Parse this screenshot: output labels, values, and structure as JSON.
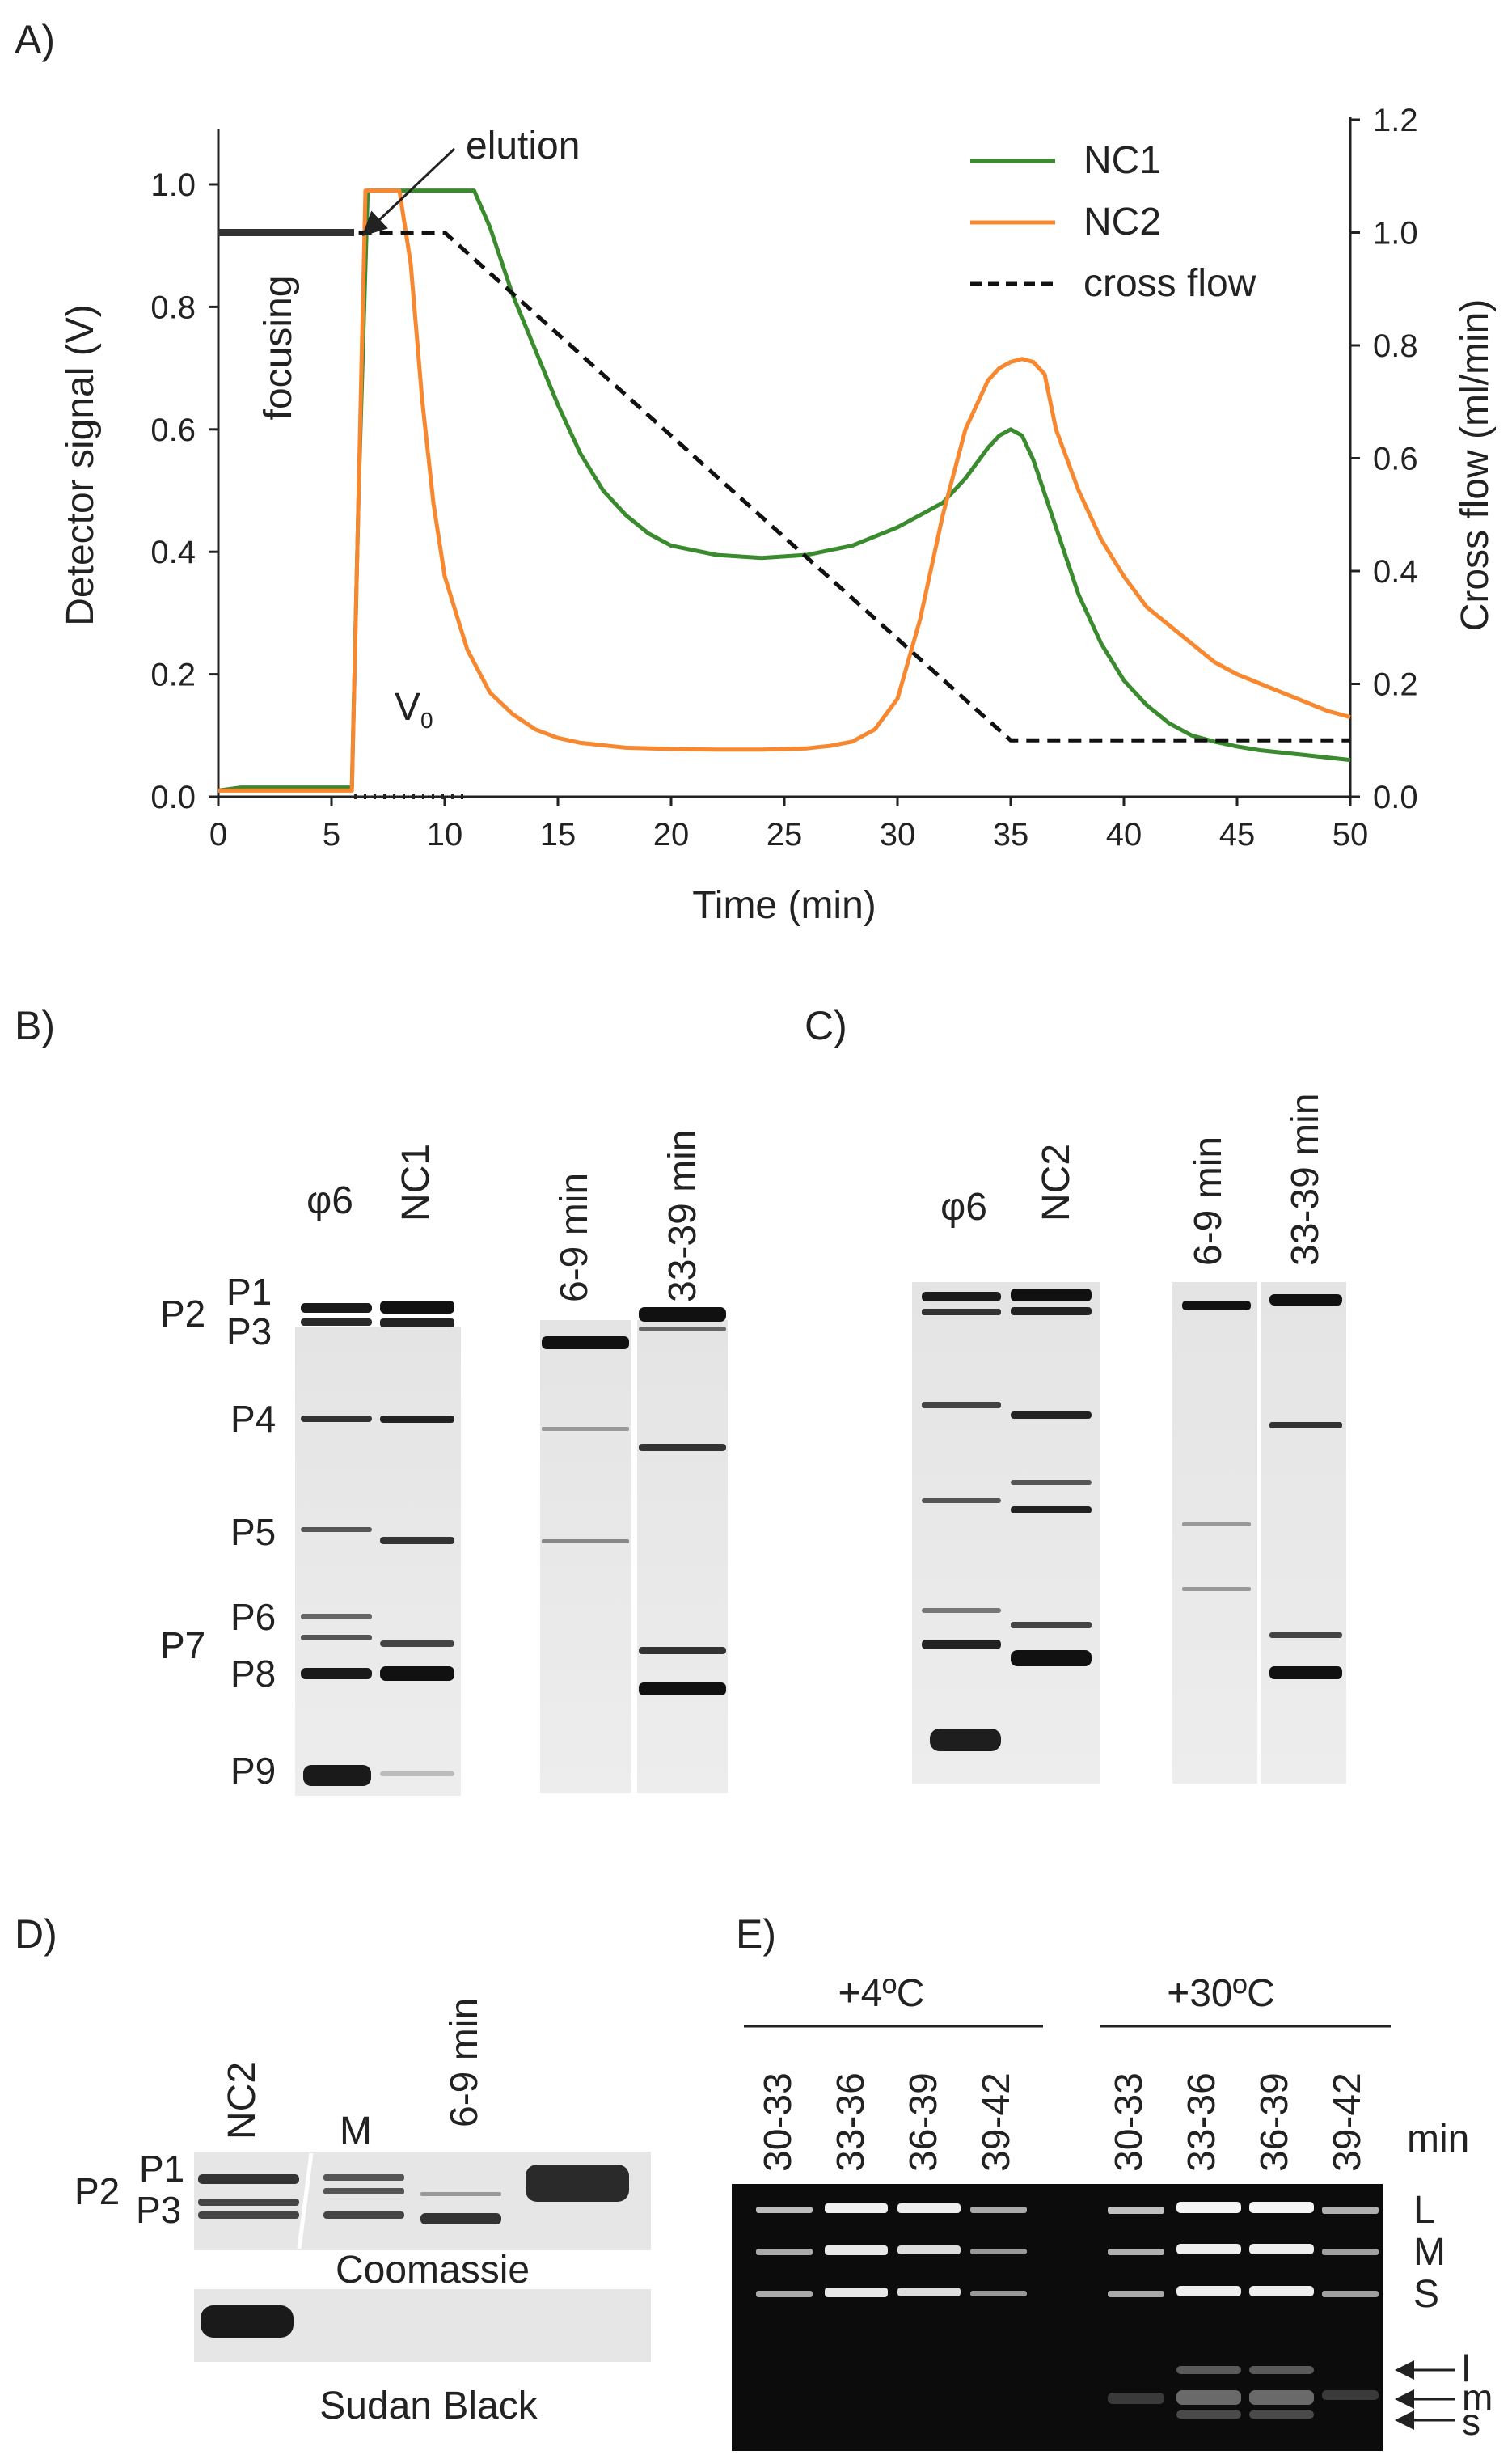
{
  "panel_labels": {
    "a": "A)",
    "b": "B)",
    "c": "C)",
    "d": "D)",
    "e": "E)"
  },
  "chart_data": {
    "type": "line",
    "title": "",
    "xlabel": "Time (min)",
    "ylabel": "Detector signal (V)",
    "y2label": "Cross flow (ml/min)",
    "xlim": [
      0,
      50
    ],
    "ylim": [
      0,
      1.1
    ],
    "y2lim": [
      0,
      1.2
    ],
    "x_ticks": [
      "0",
      "5",
      "10",
      "15",
      "20",
      "25",
      "30",
      "35",
      "40",
      "45",
      "50"
    ],
    "y_ticks": [
      "0.0",
      "0.2",
      "0.4",
      "0.6",
      "0.8",
      "1.0"
    ],
    "y2_ticks": [
      "0.0",
      "0.2",
      "0.4",
      "0.6",
      "0.8",
      "1.0",
      "1.2"
    ],
    "legend": [
      "NC1",
      "NC2",
      "cross flow"
    ],
    "legend_position": "top-right",
    "annotations": {
      "elution": "elution",
      "focusing": "focusing",
      "void": "V",
      "void_sub": "0"
    },
    "series": [
      {
        "name": "NC1",
        "color": "#3a8a2e",
        "axis": "left",
        "x": [
          0,
          1,
          5.9,
          6.2,
          6.6,
          11.3,
          12,
          13,
          14,
          15,
          16,
          17,
          18,
          19,
          20,
          22,
          24,
          26,
          28,
          30,
          31,
          32,
          33,
          34,
          34.5,
          35,
          35.5,
          36,
          37,
          38,
          39,
          40,
          41,
          42,
          43,
          44,
          45,
          46,
          47,
          48,
          49,
          50
        ],
        "y": [
          0.01,
          0.015,
          0.015,
          0.5,
          0.99,
          0.99,
          0.93,
          0.82,
          0.73,
          0.64,
          0.56,
          0.5,
          0.46,
          0.43,
          0.41,
          0.395,
          0.39,
          0.395,
          0.41,
          0.44,
          0.46,
          0.48,
          0.52,
          0.57,
          0.59,
          0.6,
          0.59,
          0.55,
          0.44,
          0.33,
          0.25,
          0.19,
          0.15,
          0.12,
          0.1,
          0.09,
          0.082,
          0.076,
          0.072,
          0.068,
          0.064,
          0.06
        ]
      },
      {
        "name": "NC2",
        "color": "#f7882f",
        "axis": "left",
        "x": [
          0,
          1,
          5.9,
          6.2,
          6.5,
          8,
          8.5,
          9,
          9.5,
          10,
          11,
          12,
          13,
          14,
          15,
          16,
          18,
          20,
          22,
          24,
          26,
          27,
          28,
          29,
          30,
          31,
          32,
          33,
          34,
          34.5,
          35,
          35.5,
          36,
          36.5,
          37,
          38,
          39,
          40,
          41,
          42,
          43,
          44,
          45,
          46,
          47,
          48,
          49,
          50
        ],
        "y": [
          0.01,
          0.01,
          0.01,
          0.5,
          0.99,
          0.99,
          0.87,
          0.65,
          0.48,
          0.36,
          0.24,
          0.17,
          0.135,
          0.11,
          0.096,
          0.088,
          0.08,
          0.078,
          0.077,
          0.077,
          0.079,
          0.083,
          0.09,
          0.11,
          0.16,
          0.29,
          0.46,
          0.6,
          0.68,
          0.7,
          0.71,
          0.715,
          0.71,
          0.69,
          0.6,
          0.5,
          0.42,
          0.36,
          0.31,
          0.28,
          0.25,
          0.22,
          0.2,
          0.185,
          0.17,
          0.155,
          0.14,
          0.13
        ]
      },
      {
        "name": "cross flow",
        "color": "#111111",
        "axis": "right",
        "dashed": true,
        "x": [
          6.2,
          10,
          35,
          50
        ],
        "y": [
          1.0,
          1.0,
          0.1,
          0.1
        ]
      },
      {
        "name": "focusing",
        "color": "#333333",
        "axis": "right",
        "x": [
          0,
          6
        ],
        "y": [
          1.0,
          1.0
        ]
      }
    ]
  },
  "panel_b": {
    "gel1_lanes": [
      "φ6",
      "NC1"
    ],
    "gel2_lanes": [
      "6-9 min",
      "33-39 min"
    ],
    "bands": [
      "P1",
      "P2",
      "P3",
      "P4",
      "P5",
      "P6",
      "P7",
      "P8",
      "P9"
    ]
  },
  "panel_c": {
    "gel1_lanes": [
      "φ6",
      "NC2"
    ],
    "gel2_lanes": [
      "6-9 min",
      "33-39 min"
    ]
  },
  "panel_d": {
    "lanes": [
      "NC2",
      "M",
      "6-9 min"
    ],
    "bands": [
      "P1",
      "P2",
      "P3"
    ],
    "stain1": "Coomassie",
    "stain2": "Sudan Black"
  },
  "panel_e": {
    "group1": "+4ºC",
    "group2": "+30ºC",
    "lanes": [
      "30-33",
      "33-36",
      "36-39",
      "39-42"
    ],
    "unit": "min",
    "right_labels": [
      "L",
      "M",
      "S"
    ],
    "arrow_labels": [
      "l",
      "m",
      "s"
    ]
  }
}
